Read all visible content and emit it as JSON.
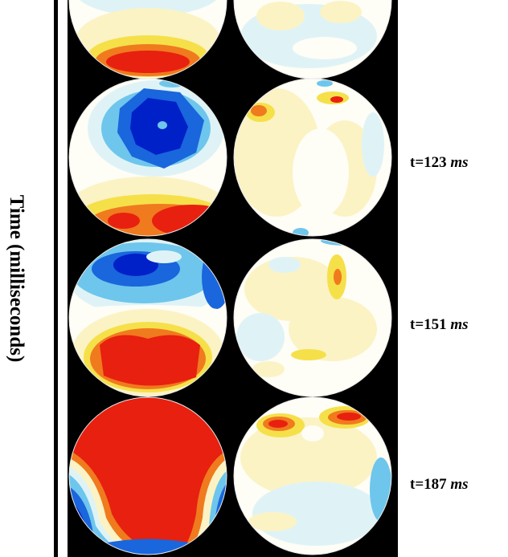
{
  "axis": {
    "label": "Time (milliseconds)"
  },
  "time_points": [
    {
      "value": "t=123",
      "unit": "ms"
    },
    {
      "value": "t=151",
      "unit": "ms"
    },
    {
      "value": "t=187",
      "unit": "ms"
    }
  ],
  "colors": {
    "background": "#000000",
    "neutral": "#fefdf6",
    "pale_yellow": "#fbf3c4",
    "pale_cyan": "#dff3f7",
    "yellow": "#f5e04a",
    "orange": "#f07a1e",
    "red": "#e8200f",
    "light_blue": "#6ec6ec",
    "blue": "#1a66dd",
    "dark_blue": "#0020c8"
  },
  "icons": [
    "scalp-topography-map"
  ]
}
